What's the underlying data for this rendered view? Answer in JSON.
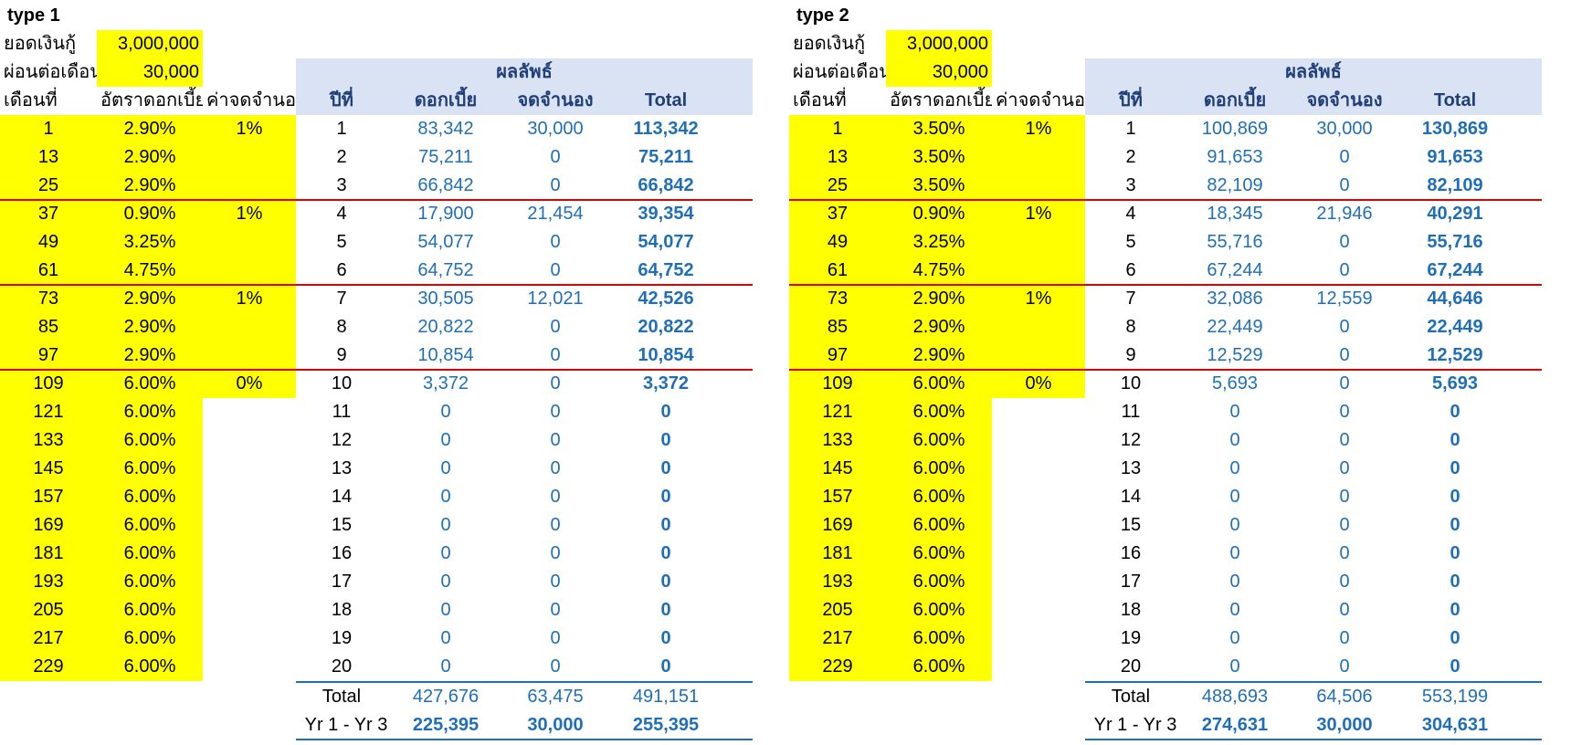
{
  "sheets": [
    {
      "title": "type 1",
      "loan_label": "ยอดเงินกู้",
      "loan_amount": "3,000,000",
      "payment_label": "ผ่อนต่อเดือน",
      "payment_amount": "30,000",
      "col_month": "เดือนที่",
      "col_rate": "อัตราดอกเบี้ย",
      "col_reduce": "ค่าจดจำนอง",
      "result_header": "ผลลัพธ์",
      "col_year": "ปีที่",
      "col_interest": "ดอกเบี้ย",
      "col_mortgage": "จดจำนอง",
      "col_total": "Total",
      "input_rows": [
        {
          "month": "1",
          "rate": "2.90%",
          "fee": "1%"
        },
        {
          "month": "13",
          "rate": "2.90%",
          "fee": ""
        },
        {
          "month": "25",
          "rate": "2.90%",
          "fee": ""
        },
        {
          "month": "37",
          "rate": "0.90%",
          "fee": "1%"
        },
        {
          "month": "49",
          "rate": "3.25%",
          "fee": ""
        },
        {
          "month": "61",
          "rate": "4.75%",
          "fee": ""
        },
        {
          "month": "73",
          "rate": "2.90%",
          "fee": "1%"
        },
        {
          "month": "85",
          "rate": "2.90%",
          "fee": ""
        },
        {
          "month": "97",
          "rate": "2.90%",
          "fee": ""
        },
        {
          "month": "109",
          "rate": "6.00%",
          "fee": "0%"
        },
        {
          "month": "121",
          "rate": "6.00%",
          "fee": ""
        },
        {
          "month": "133",
          "rate": "6.00%",
          "fee": ""
        },
        {
          "month": "145",
          "rate": "6.00%",
          "fee": ""
        },
        {
          "month": "157",
          "rate": "6.00%",
          "fee": ""
        },
        {
          "month": "169",
          "rate": "6.00%",
          "fee": ""
        },
        {
          "month": "181",
          "rate": "6.00%",
          "fee": ""
        },
        {
          "month": "193",
          "rate": "6.00%",
          "fee": ""
        },
        {
          "month": "205",
          "rate": "6.00%",
          "fee": ""
        },
        {
          "month": "217",
          "rate": "6.00%",
          "fee": ""
        },
        {
          "month": "229",
          "rate": "6.00%",
          "fee": ""
        }
      ],
      "result_rows": [
        {
          "year": "1",
          "interest": "83,342",
          "mortgage": "30,000",
          "total": "113,342"
        },
        {
          "year": "2",
          "interest": "75,211",
          "mortgage": "0",
          "total": "75,211"
        },
        {
          "year": "3",
          "interest": "66,842",
          "mortgage": "0",
          "total": "66,842"
        },
        {
          "year": "4",
          "interest": "17,900",
          "mortgage": "21,454",
          "total": "39,354"
        },
        {
          "year": "5",
          "interest": "54,077",
          "mortgage": "0",
          "total": "54,077"
        },
        {
          "year": "6",
          "interest": "64,752",
          "mortgage": "0",
          "total": "64,752"
        },
        {
          "year": "7",
          "interest": "30,505",
          "mortgage": "12,021",
          "total": "42,526"
        },
        {
          "year": "8",
          "interest": "20,822",
          "mortgage": "0",
          "total": "20,822"
        },
        {
          "year": "9",
          "interest": "10,854",
          "mortgage": "0",
          "total": "10,854"
        },
        {
          "year": "10",
          "interest": "3,372",
          "mortgage": "0",
          "total": "3,372"
        },
        {
          "year": "11",
          "interest": "0",
          "mortgage": "0",
          "total": "0"
        },
        {
          "year": "12",
          "interest": "0",
          "mortgage": "0",
          "total": "0"
        },
        {
          "year": "13",
          "interest": "0",
          "mortgage": "0",
          "total": "0"
        },
        {
          "year": "14",
          "interest": "0",
          "mortgage": "0",
          "total": "0"
        },
        {
          "year": "15",
          "interest": "0",
          "mortgage": "0",
          "total": "0"
        },
        {
          "year": "16",
          "interest": "0",
          "mortgage": "0",
          "total": "0"
        },
        {
          "year": "17",
          "interest": "0",
          "mortgage": "0",
          "total": "0"
        },
        {
          "year": "18",
          "interest": "0",
          "mortgage": "0",
          "total": "0"
        },
        {
          "year": "19",
          "interest": "0",
          "mortgage": "0",
          "total": "0"
        },
        {
          "year": "20",
          "interest": "0",
          "mortgage": "0",
          "total": "0"
        }
      ],
      "summary_total": {
        "label": "Total",
        "interest": "427,676",
        "mortgage": "63,475",
        "total": "491,151"
      },
      "summary_yr13": {
        "label": "Yr 1 - Yr 3",
        "interest": "225,395",
        "mortgage": "30,000",
        "total": "255,395"
      }
    },
    {
      "title": "type 2",
      "loan_label": "ยอดเงินกู้",
      "loan_amount": "3,000,000",
      "payment_label": "ผ่อนต่อเดือน",
      "payment_amount": "30,000",
      "col_month": "เดือนที่",
      "col_rate": "อัตราดอกเบี้ย",
      "col_reduce": "ค่าจดจำนอง",
      "result_header": "ผลลัพธ์",
      "col_year": "ปีที่",
      "col_interest": "ดอกเบี้ย",
      "col_mortgage": "จดจำนอง",
      "col_total": "Total",
      "input_rows": [
        {
          "month": "1",
          "rate": "3.50%",
          "fee": "1%"
        },
        {
          "month": "13",
          "rate": "3.50%",
          "fee": ""
        },
        {
          "month": "25",
          "rate": "3.50%",
          "fee": ""
        },
        {
          "month": "37",
          "rate": "0.90%",
          "fee": "1%"
        },
        {
          "month": "49",
          "rate": "3.25%",
          "fee": ""
        },
        {
          "month": "61",
          "rate": "4.75%",
          "fee": ""
        },
        {
          "month": "73",
          "rate": "2.90%",
          "fee": "1%"
        },
        {
          "month": "85",
          "rate": "2.90%",
          "fee": ""
        },
        {
          "month": "97",
          "rate": "2.90%",
          "fee": ""
        },
        {
          "month": "109",
          "rate": "6.00%",
          "fee": "0%"
        },
        {
          "month": "121",
          "rate": "6.00%",
          "fee": ""
        },
        {
          "month": "133",
          "rate": "6.00%",
          "fee": ""
        },
        {
          "month": "145",
          "rate": "6.00%",
          "fee": ""
        },
        {
          "month": "157",
          "rate": "6.00%",
          "fee": ""
        },
        {
          "month": "169",
          "rate": "6.00%",
          "fee": ""
        },
        {
          "month": "181",
          "rate": "6.00%",
          "fee": ""
        },
        {
          "month": "193",
          "rate": "6.00%",
          "fee": ""
        },
        {
          "month": "205",
          "rate": "6.00%",
          "fee": ""
        },
        {
          "month": "217",
          "rate": "6.00%",
          "fee": ""
        },
        {
          "month": "229",
          "rate": "6.00%",
          "fee": ""
        }
      ],
      "result_rows": [
        {
          "year": "1",
          "interest": "100,869",
          "mortgage": "30,000",
          "total": "130,869"
        },
        {
          "year": "2",
          "interest": "91,653",
          "mortgage": "0",
          "total": "91,653"
        },
        {
          "year": "3",
          "interest": "82,109",
          "mortgage": "0",
          "total": "82,109"
        },
        {
          "year": "4",
          "interest": "18,345",
          "mortgage": "21,946",
          "total": "40,291"
        },
        {
          "year": "5",
          "interest": "55,716",
          "mortgage": "0",
          "total": "55,716"
        },
        {
          "year": "6",
          "interest": "67,244",
          "mortgage": "0",
          "total": "67,244"
        },
        {
          "year": "7",
          "interest": "32,086",
          "mortgage": "12,559",
          "total": "44,646"
        },
        {
          "year": "8",
          "interest": "22,449",
          "mortgage": "0",
          "total": "22,449"
        },
        {
          "year": "9",
          "interest": "12,529",
          "mortgage": "0",
          "total": "12,529"
        },
        {
          "year": "10",
          "interest": "5,693",
          "mortgage": "0",
          "total": "5,693"
        },
        {
          "year": "11",
          "interest": "0",
          "mortgage": "0",
          "total": "0"
        },
        {
          "year": "12",
          "interest": "0",
          "mortgage": "0",
          "total": "0"
        },
        {
          "year": "13",
          "interest": "0",
          "mortgage": "0",
          "total": "0"
        },
        {
          "year": "14",
          "interest": "0",
          "mortgage": "0",
          "total": "0"
        },
        {
          "year": "15",
          "interest": "0",
          "mortgage": "0",
          "total": "0"
        },
        {
          "year": "16",
          "interest": "0",
          "mortgage": "0",
          "total": "0"
        },
        {
          "year": "17",
          "interest": "0",
          "mortgage": "0",
          "total": "0"
        },
        {
          "year": "18",
          "interest": "0",
          "mortgage": "0",
          "total": "0"
        },
        {
          "year": "19",
          "interest": "0",
          "mortgage": "0",
          "total": "0"
        },
        {
          "year": "20",
          "interest": "0",
          "mortgage": "0",
          "total": "0"
        }
      ],
      "summary_total": {
        "label": "Total",
        "interest": "488,693",
        "mortgage": "64,506",
        "total": "553,199"
      },
      "summary_yr13": {
        "label": "Yr 1 - Yr 3",
        "interest": "274,631",
        "mortgage": "30,000",
        "total": "304,631"
      }
    }
  ]
}
